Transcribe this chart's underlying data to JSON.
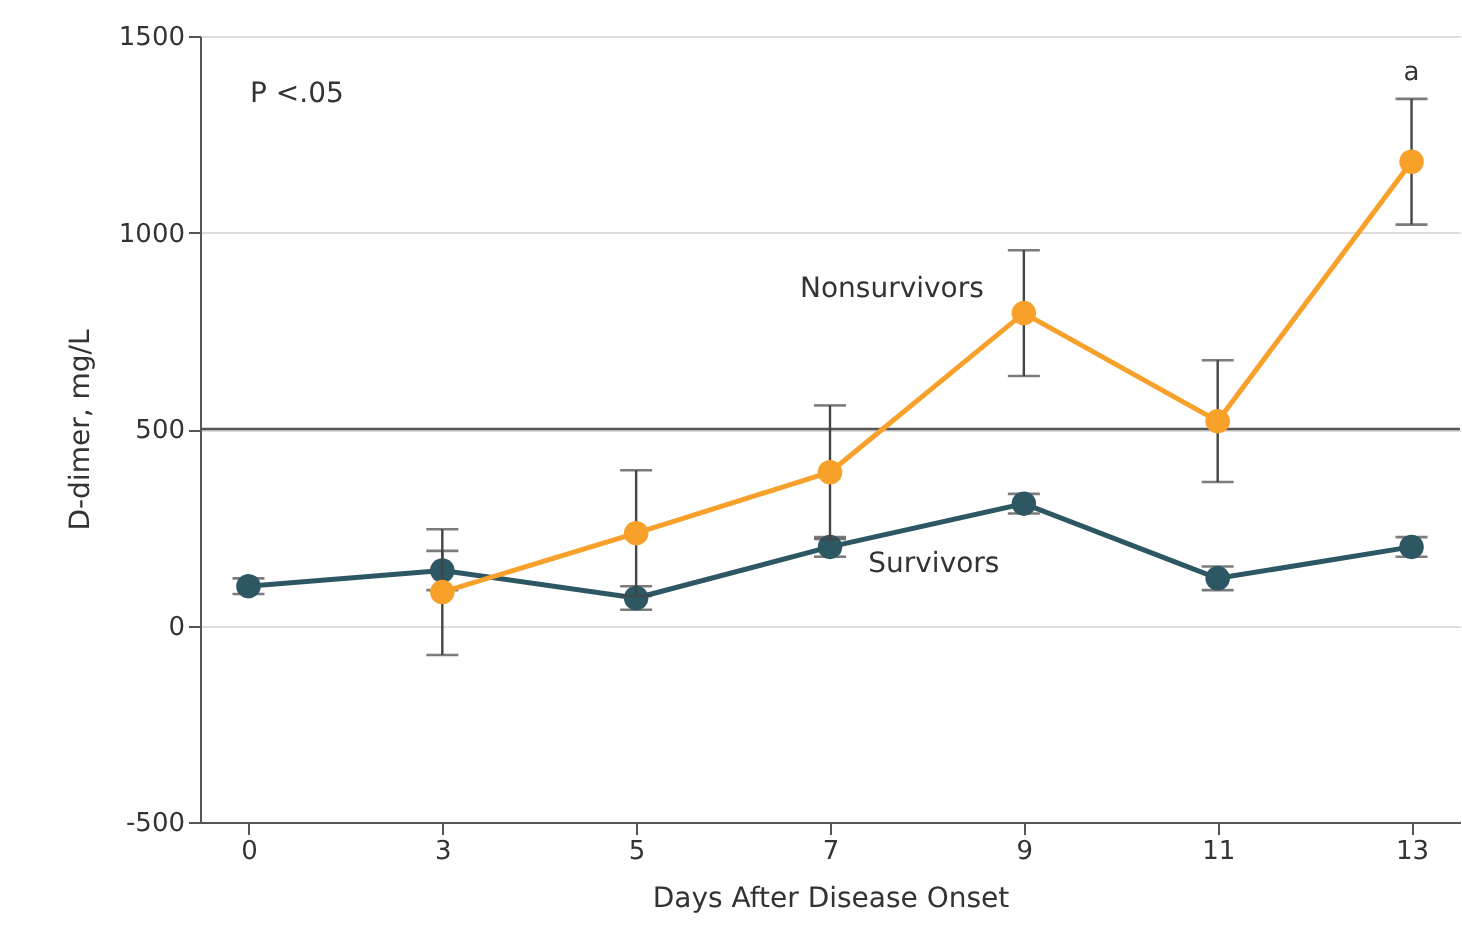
{
  "chart_data": {
    "type": "line",
    "xlabel": "Days After Disease Onset",
    "ylabel": "D-dimer, mg/L",
    "categories": [
      "0",
      "3",
      "5",
      "7",
      "9",
      "11",
      "13"
    ],
    "series": [
      {
        "name": "Survivors",
        "color": "#2d5763",
        "values": [
          100,
          140,
          70,
          200,
          310,
          120,
          200
        ],
        "errors": [
          20,
          50,
          30,
          25,
          25,
          30,
          25
        ]
      },
      {
        "name": "Nonsurvivors",
        "color": "#f7a12a",
        "values": [
          null,
          85,
          235,
          390,
          795,
          520,
          1180
        ],
        "errors": [
          null,
          160,
          160,
          170,
          160,
          155,
          160
        ]
      }
    ],
    "ylim": [
      -500,
      1500
    ],
    "yticks": [
      -500,
      0,
      500,
      1000,
      1500
    ],
    "grid": "y",
    "marker": "circle",
    "ref_lines": [
      {
        "axis": "y",
        "value": 500,
        "color": "#555555"
      }
    ],
    "annotations": [
      "P <.05",
      "a"
    ]
  }
}
